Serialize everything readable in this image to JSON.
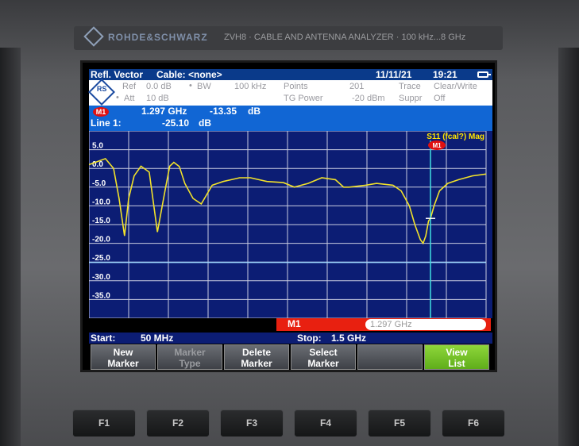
{
  "device": {
    "brand": "ROHDE&SCHWARZ",
    "model": "ZVH8 · CABLE AND ANTENNA ANALYZER · 100 kHz...8 GHz"
  },
  "status": {
    "mode": "Refl. Vector",
    "cable": "Cable: <none>",
    "date": "11/11/21",
    "time": "19:21"
  },
  "settings": {
    "ref_label": "Ref",
    "ref_value": "0.0 dB",
    "bw_label": "BW",
    "bw_value": "100 kHz",
    "att_label": "Att",
    "att_value": "10 dB",
    "points_label": "Points",
    "points_value": "201",
    "tg_label": "TG Power",
    "tg_value": "-20 dBm",
    "trace_label": "Trace",
    "trace_value": "Clear/Write",
    "suppr_label": "Suppr",
    "suppr_value": "Off"
  },
  "marker": {
    "badge": "M1",
    "freq": "1.297 GHz",
    "value": "-13.35",
    "unit": "dB",
    "line_label": "Line 1:",
    "line_value": "-25.10",
    "line_unit": "dB"
  },
  "trace_label": "S11 (fcal?) Mag",
  "marker_entry": {
    "label": "M1",
    "value": "1.297 GHz"
  },
  "freq": {
    "start_label": "Start:",
    "start_value": "50 MHz",
    "stop_label": "Stop:",
    "stop_value": "1.5 GHz"
  },
  "softkeys": [
    {
      "l1": "New",
      "l2": "Marker"
    },
    {
      "l1": "Marker",
      "l2": "Type"
    },
    {
      "l1": "Delete",
      "l2": "Marker"
    },
    {
      "l1": "Select",
      "l2": "Marker"
    },
    {
      "l1": "",
      "l2": ""
    },
    {
      "l1": "View",
      "l2": "List"
    }
  ],
  "fkeys": [
    "F1",
    "F2",
    "F3",
    "F4",
    "F5",
    "F6"
  ],
  "chart_data": {
    "type": "line",
    "y_tick_labels": [
      "5.0",
      "0.0",
      "-5.0",
      "-10.0",
      "-15.0",
      "-20.0",
      "-25.0",
      "-30.0",
      "-35.0"
    ],
    "ylim": [
      -40,
      10
    ],
    "xlim": [
      50,
      1500
    ],
    "x_unit": "MHz",
    "y_unit": "dB",
    "series": [
      {
        "name": "S11 (fcal?) Mag",
        "x": [
          50,
          80,
          110,
          140,
          160,
          180,
          195,
          215,
          240,
          270,
          300,
          330,
          345,
          360,
          380,
          400,
          430,
          460,
          500,
          540,
          570,
          600,
          640,
          700,
          760,
          800,
          850,
          900,
          950,
          980,
          1000,
          1060,
          1100,
          1160,
          1190,
          1220,
          1240,
          1260,
          1270,
          1280,
          1290,
          1297,
          1310,
          1330,
          1360,
          1400,
          1450,
          1500
        ],
        "y": [
          1.0,
          1.8,
          2.6,
          0,
          -8.0,
          -18.0,
          -8.0,
          -2.0,
          0.6,
          -1.0,
          -17.0,
          -5.0,
          0.6,
          1.6,
          0.5,
          -4.0,
          -8.0,
          -9.5,
          -4.5,
          -3.5,
          -3.0,
          -2.5,
          -2.5,
          -3.5,
          -3.8,
          -5.0,
          -4.0,
          -2.5,
          -3.0,
          -5.0,
          -5.0,
          -4.5,
          -4.0,
          -4.5,
          -6.0,
          -10.0,
          -15.0,
          -19.0,
          -20.0,
          -18.0,
          -14.0,
          -13.35,
          -10.0,
          -6.0,
          -4.0,
          -3.0,
          -2.0,
          -1.5
        ]
      }
    ],
    "marker": {
      "label": "M1",
      "x": 1297,
      "y": -13.35
    },
    "limit_line": {
      "label": "Line 1",
      "y": -25.1
    },
    "grid": true
  }
}
